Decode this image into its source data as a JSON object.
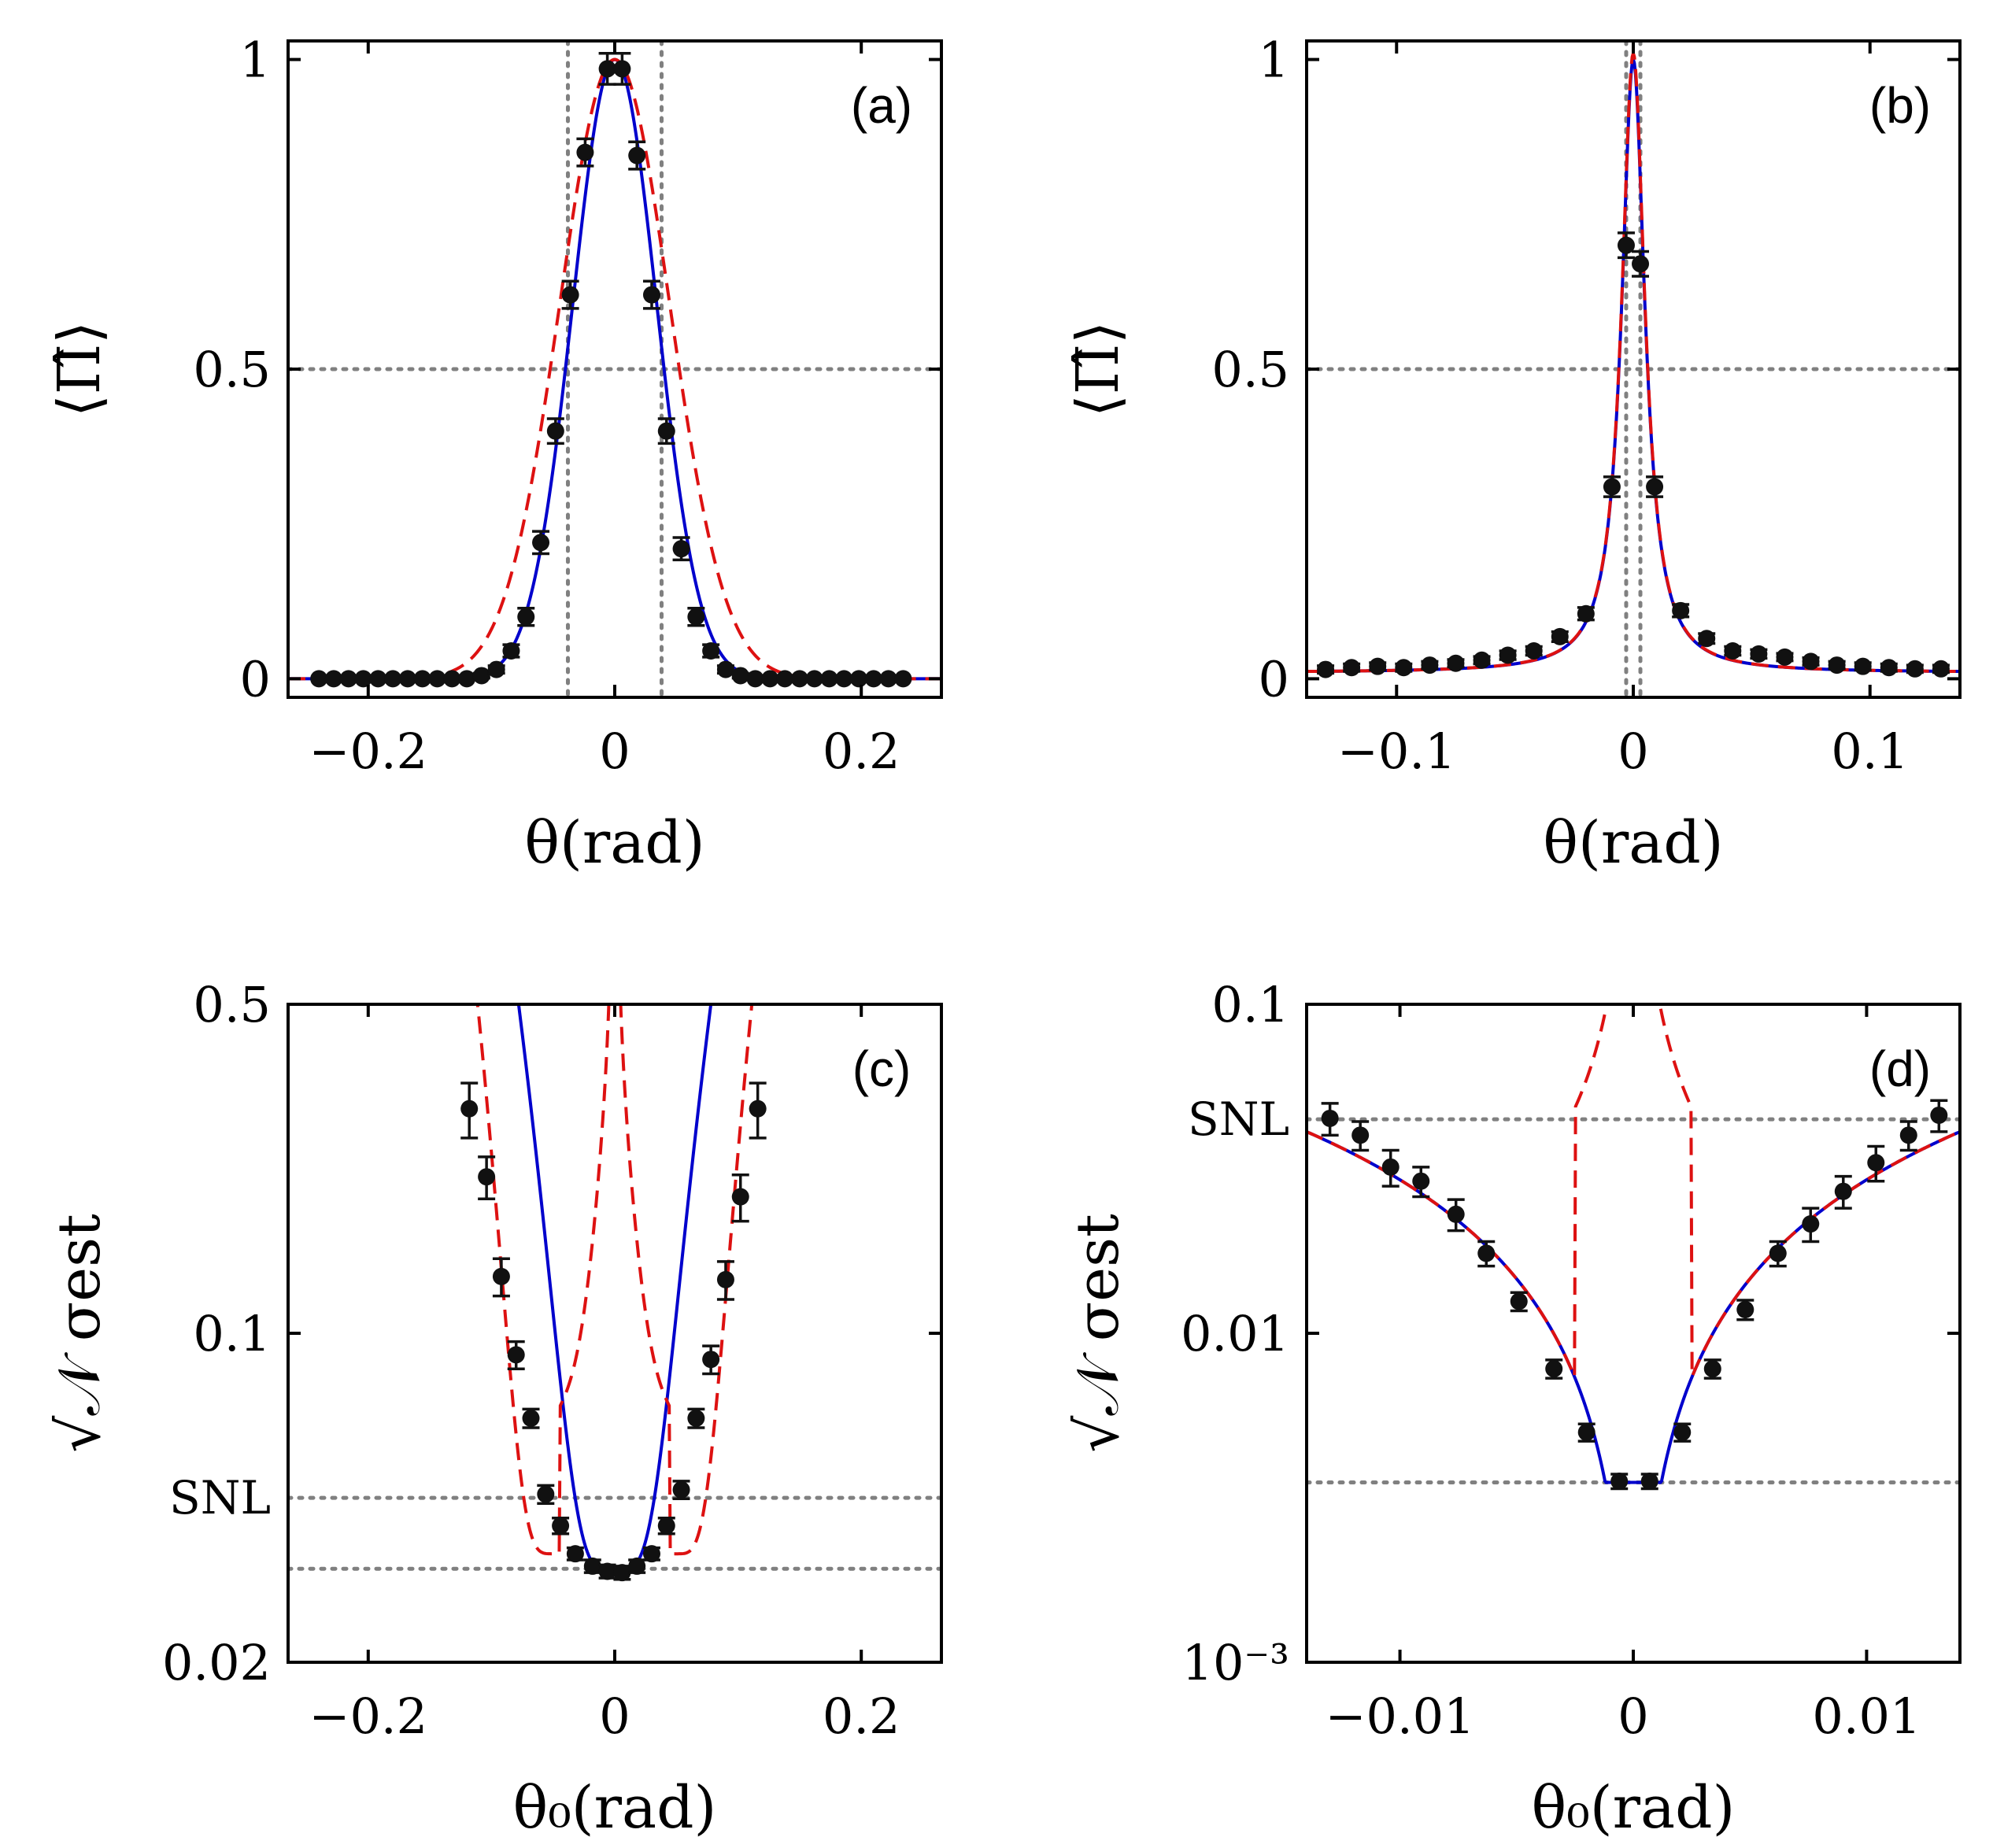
{
  "chart_data": [
    {
      "panel": "(a)",
      "type": "scatter",
      "xlabel": "θ(rad)",
      "ylabel": "⟨Π̂⟩",
      "xlim": [
        -0.265,
        0.265
      ],
      "ylim": [
        -0.03,
        1.03
      ],
      "yscale": "linear",
      "xticks": [
        -0.2,
        0,
        0.2
      ],
      "xtick_labels": [
        "−0.2",
        "0",
        "0.2"
      ],
      "yticks": [
        0,
        0.5,
        1
      ],
      "ytick_labels": [
        "0",
        "0.5",
        "1"
      ],
      "hlines": [
        0.5
      ],
      "vlines": [
        -0.038,
        0.038
      ],
      "colors": {
        "data": "#111111",
        "fit": "#0000cc",
        "model": "#dd1111",
        "ref": "#808080"
      },
      "model_curve": {
        "type": "gauss",
        "amp": 1,
        "center": 0,
        "sigma": 0.0445,
        "offset": 0
      },
      "fit_curve": {
        "type": "gauss",
        "amp": 1,
        "center": 0,
        "sigma": 0.034,
        "offset": 0
      },
      "points": [
        {
          "x": -0.24,
          "y": 0.0,
          "e": 0.0
        },
        {
          "x": -0.228,
          "y": 0.0,
          "e": 0.0
        },
        {
          "x": -0.216,
          "y": 0.0,
          "e": 0.0
        },
        {
          "x": -0.204,
          "y": 0.0,
          "e": 0.0
        },
        {
          "x": -0.192,
          "y": 0.0,
          "e": 0.0
        },
        {
          "x": -0.18,
          "y": 0.0,
          "e": 0.0
        },
        {
          "x": -0.168,
          "y": 0.0,
          "e": 0.0
        },
        {
          "x": -0.156,
          "y": 0.0,
          "e": 0.0
        },
        {
          "x": -0.144,
          "y": 0.0,
          "e": 0.0
        },
        {
          "x": -0.132,
          "y": 0.0,
          "e": 0.0
        },
        {
          "x": -0.12,
          "y": 0.0,
          "e": 0.0
        },
        {
          "x": -0.108,
          "y": 0.005,
          "e": 0.004
        },
        {
          "x": -0.096,
          "y": 0.015,
          "e": 0.006
        },
        {
          "x": -0.084,
          "y": 0.045,
          "e": 0.01
        },
        {
          "x": -0.072,
          "y": 0.1,
          "e": 0.014
        },
        {
          "x": -0.06,
          "y": 0.22,
          "e": 0.018
        },
        {
          "x": -0.048,
          "y": 0.4,
          "e": 0.02
        },
        {
          "x": -0.036,
          "y": 0.62,
          "e": 0.022
        },
        {
          "x": -0.024,
          "y": 0.85,
          "e": 0.022
        },
        {
          "x": -0.006,
          "y": 0.985,
          "e": 0.025
        },
        {
          "x": 0.006,
          "y": 0.985,
          "e": 0.025
        },
        {
          "x": 0.018,
          "y": 0.845,
          "e": 0.022
        },
        {
          "x": 0.03,
          "y": 0.62,
          "e": 0.022
        },
        {
          "x": 0.042,
          "y": 0.4,
          "e": 0.02
        },
        {
          "x": 0.054,
          "y": 0.21,
          "e": 0.018
        },
        {
          "x": 0.066,
          "y": 0.1,
          "e": 0.014
        },
        {
          "x": 0.078,
          "y": 0.045,
          "e": 0.01
        },
        {
          "x": 0.09,
          "y": 0.015,
          "e": 0.006
        },
        {
          "x": 0.102,
          "y": 0.005,
          "e": 0.004
        },
        {
          "x": 0.114,
          "y": 0.0,
          "e": 0.0
        },
        {
          "x": 0.126,
          "y": 0.0,
          "e": 0.0
        },
        {
          "x": 0.138,
          "y": 0.0,
          "e": 0.0
        },
        {
          "x": 0.15,
          "y": 0.0,
          "e": 0.0
        },
        {
          "x": 0.162,
          "y": 0.0,
          "e": 0.0
        },
        {
          "x": 0.174,
          "y": 0.0,
          "e": 0.0
        },
        {
          "x": 0.186,
          "y": 0.0,
          "e": 0.0
        },
        {
          "x": 0.198,
          "y": 0.0,
          "e": 0.0
        },
        {
          "x": 0.21,
          "y": 0.0,
          "e": 0.0
        },
        {
          "x": 0.222,
          "y": 0.0,
          "e": 0.0
        },
        {
          "x": 0.234,
          "y": 0.0,
          "e": 0.0
        }
      ]
    },
    {
      "panel": "(b)",
      "type": "scatter",
      "xlabel": "θ(rad)",
      "ylabel": "⟨Π̂⟩",
      "xlim": [
        -0.138,
        0.138
      ],
      "ylim": [
        -0.03,
        1.03
      ],
      "yscale": "linear",
      "xticks": [
        -0.1,
        0,
        0.1
      ],
      "xtick_labels": [
        "−0.1",
        "0",
        "0.1"
      ],
      "yticks": [
        0,
        0.5,
        1
      ],
      "ytick_labels": [
        "0",
        "0.5",
        "1"
      ],
      "hlines": [
        0.5
      ],
      "vlines": [
        -0.003,
        0.003
      ],
      "colors": {
        "data": "#111111",
        "fit": "#0000cc",
        "model": "#dd1111",
        "ref": "#808080"
      },
      "model_curve": {
        "type": "lorentz",
        "amp": 1,
        "center": 0,
        "gamma": 0.006,
        "offset": 0.01
      },
      "fit_curve": {
        "type": "lorentz",
        "amp": 0.99,
        "center": 0,
        "gamma": 0.006,
        "offset": 0.01
      },
      "points": [
        {
          "x": -0.13,
          "y": 0.015,
          "e": 0.006
        },
        {
          "x": -0.119,
          "y": 0.018,
          "e": 0.006
        },
        {
          "x": -0.108,
          "y": 0.02,
          "e": 0.006
        },
        {
          "x": -0.097,
          "y": 0.018,
          "e": 0.006
        },
        {
          "x": -0.086,
          "y": 0.022,
          "e": 0.006
        },
        {
          "x": -0.075,
          "y": 0.025,
          "e": 0.006
        },
        {
          "x": -0.064,
          "y": 0.03,
          "e": 0.006
        },
        {
          "x": -0.053,
          "y": 0.038,
          "e": 0.007
        },
        {
          "x": -0.042,
          "y": 0.045,
          "e": 0.007
        },
        {
          "x": -0.031,
          "y": 0.068,
          "e": 0.008
        },
        {
          "x": -0.02,
          "y": 0.105,
          "e": 0.01
        },
        {
          "x": -0.009,
          "y": 0.31,
          "e": 0.016
        },
        {
          "x": -0.003,
          "y": 0.7,
          "e": 0.02
        },
        {
          "x": 0.003,
          "y": 0.67,
          "e": 0.02
        },
        {
          "x": 0.009,
          "y": 0.31,
          "e": 0.016
        },
        {
          "x": 0.02,
          "y": 0.11,
          "e": 0.01
        },
        {
          "x": 0.031,
          "y": 0.065,
          "e": 0.008
        },
        {
          "x": 0.042,
          "y": 0.045,
          "e": 0.007
        },
        {
          "x": 0.053,
          "y": 0.04,
          "e": 0.007
        },
        {
          "x": 0.064,
          "y": 0.035,
          "e": 0.006
        },
        {
          "x": 0.075,
          "y": 0.028,
          "e": 0.006
        },
        {
          "x": 0.086,
          "y": 0.022,
          "e": 0.006
        },
        {
          "x": 0.097,
          "y": 0.02,
          "e": 0.006
        },
        {
          "x": 0.108,
          "y": 0.018,
          "e": 0.006
        },
        {
          "x": 0.119,
          "y": 0.016,
          "e": 0.006
        },
        {
          "x": 0.13,
          "y": 0.016,
          "e": 0.006
        }
      ]
    },
    {
      "panel": "(c)",
      "type": "scatter",
      "xlabel": "θ₀(rad)",
      "ylabel": "√𝒩 σest",
      "xlim": [
        -0.265,
        0.265
      ],
      "ylim": [
        0.02,
        0.5
      ],
      "yscale": "log",
      "xticks": [
        -0.2,
        0,
        0.2
      ],
      "xtick_labels": [
        "−0.2",
        "0",
        "0.2"
      ],
      "yticks": [
        0.02,
        0.1,
        0.5
      ],
      "ytick_labels": [
        "0.02",
        "0.1",
        "0.5"
      ],
      "hlines": [
        0.0447,
        0.0316
      ],
      "hline_labels": [
        "SNL",
        ""
      ],
      "colors": {
        "data": "#111111",
        "fit": "#0000cc",
        "model": "#dd1111",
        "ref": "#808080"
      },
      "points": [
        {
          "x": -0.118,
          "y": 0.3,
          "e": 0.04
        },
        {
          "x": -0.104,
          "y": 0.215,
          "e": 0.022
        },
        {
          "x": -0.092,
          "y": 0.132,
          "e": 0.012
        },
        {
          "x": -0.08,
          "y": 0.09,
          "e": 0.006
        },
        {
          "x": -0.068,
          "y": 0.066,
          "e": 0.003
        },
        {
          "x": -0.056,
          "y": 0.0455,
          "e": 0.002
        },
        {
          "x": -0.044,
          "y": 0.039,
          "e": 0.0015
        },
        {
          "x": -0.032,
          "y": 0.034,
          "e": 0.001
        },
        {
          "x": -0.018,
          "y": 0.032,
          "e": 0.001
        },
        {
          "x": -0.006,
          "y": 0.0312,
          "e": 0.001
        },
        {
          "x": 0.006,
          "y": 0.031,
          "e": 0.001
        },
        {
          "x": 0.018,
          "y": 0.032,
          "e": 0.001
        },
        {
          "x": 0.03,
          "y": 0.034,
          "e": 0.001
        },
        {
          "x": 0.042,
          "y": 0.039,
          "e": 0.0015
        },
        {
          "x": 0.054,
          "y": 0.0465,
          "e": 0.002
        },
        {
          "x": 0.066,
          "y": 0.066,
          "e": 0.003
        },
        {
          "x": 0.078,
          "y": 0.088,
          "e": 0.006
        },
        {
          "x": 0.09,
          "y": 0.13,
          "e": 0.012
        },
        {
          "x": 0.102,
          "y": 0.195,
          "e": 0.022
        },
        {
          "x": 0.116,
          "y": 0.3,
          "e": 0.04
        }
      ]
    },
    {
      "panel": "(d)",
      "type": "scatter",
      "xlabel": "θ₀(rad)",
      "ylabel": "√𝒩 σest",
      "xlim": [
        -0.014,
        0.014
      ],
      "ylim": [
        0.001,
        0.1
      ],
      "yscale": "log",
      "xticks": [
        -0.01,
        0,
        0.01
      ],
      "xtick_labels": [
        "−0.01",
        "0",
        "0.01"
      ],
      "yticks": [
        0.001,
        0.01,
        0.1
      ],
      "ytick_labels": [
        "10⁻³",
        "0.01",
        "0.1"
      ],
      "hlines": [
        0.0447,
        0.00352
      ],
      "hline_labels": [
        "SNL",
        ""
      ],
      "colors": {
        "data": "#111111",
        "fit": "#0000cc",
        "model": "#dd1111",
        "ref": "#808080"
      },
      "points": [
        {
          "x": -0.013,
          "y": 0.045,
          "e": 0.005
        },
        {
          "x": -0.0117,
          "y": 0.04,
          "e": 0.004
        },
        {
          "x": -0.0104,
          "y": 0.032,
          "e": 0.004
        },
        {
          "x": -0.0091,
          "y": 0.029,
          "e": 0.003
        },
        {
          "x": -0.0076,
          "y": 0.023,
          "e": 0.0025
        },
        {
          "x": -0.0063,
          "y": 0.0175,
          "e": 0.0015
        },
        {
          "x": -0.0049,
          "y": 0.0125,
          "e": 0.0008
        },
        {
          "x": -0.0034,
          "y": 0.0078,
          "e": 0.0005
        },
        {
          "x": -0.002,
          "y": 0.005,
          "e": 0.0003
        },
        {
          "x": -0.0006,
          "y": 0.00355,
          "e": 0.00018
        },
        {
          "x": 0.0007,
          "y": 0.00355,
          "e": 0.00018
        },
        {
          "x": 0.0021,
          "y": 0.005,
          "e": 0.0003
        },
        {
          "x": 0.0034,
          "y": 0.0078,
          "e": 0.0005
        },
        {
          "x": 0.0048,
          "y": 0.0118,
          "e": 0.0008
        },
        {
          "x": 0.0062,
          "y": 0.0175,
          "e": 0.0015
        },
        {
          "x": 0.0076,
          "y": 0.0215,
          "e": 0.0025
        },
        {
          "x": 0.009,
          "y": 0.027,
          "e": 0.003
        },
        {
          "x": 0.0104,
          "y": 0.033,
          "e": 0.004
        },
        {
          "x": 0.0118,
          "y": 0.04,
          "e": 0.004
        },
        {
          "x": 0.0131,
          "y": 0.046,
          "e": 0.005
        }
      ]
    }
  ]
}
